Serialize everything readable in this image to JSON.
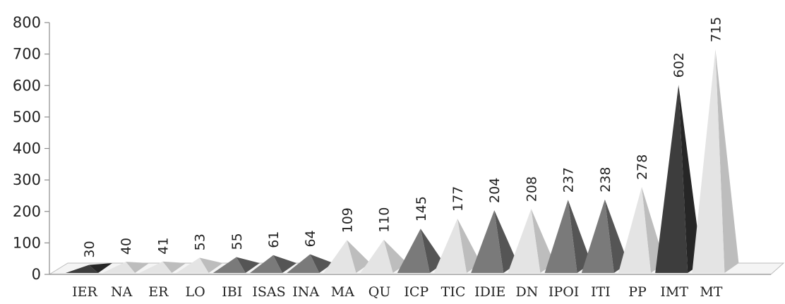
{
  "chart_data": {
    "type": "bar",
    "bar_shape": "pyramid-3d",
    "categories": [
      "IER",
      "NA",
      "ER",
      "LO",
      "IBI",
      "ISAS",
      "INA",
      "MA",
      "QU",
      "ICP",
      "TIC",
      "IDIE",
      "DN",
      "IPOI",
      "ITI",
      "PP",
      "IMT",
      "MT"
    ],
    "values": [
      30,
      40,
      41,
      53,
      55,
      61,
      64,
      109,
      110,
      145,
      177,
      204,
      208,
      237,
      238,
      278,
      602,
      715
    ],
    "value_labels": [
      "30",
      "40",
      "41",
      "53",
      "55",
      "61",
      "64",
      "109",
      "110",
      "145",
      "177",
      "204",
      "208",
      "237",
      "238",
      "278",
      "602",
      "715"
    ],
    "shades": [
      "dark",
      "light",
      "light",
      "light",
      "mid",
      "mid",
      "mid",
      "light",
      "light",
      "mid",
      "light",
      "mid",
      "light",
      "mid",
      "mid",
      "light",
      "dark",
      "light"
    ],
    "shade_colors": {
      "dark": {
        "front": "#3d3d3d",
        "side": "#262626"
      },
      "mid": {
        "front": "#7a7a7a",
        "side": "#555555"
      },
      "light": {
        "front": "#e4e4e4",
        "side": "#bdbdbd"
      }
    },
    "ylim": [
      0,
      800
    ],
    "yticks": [
      "0",
      "100",
      "200",
      "300",
      "400",
      "500",
      "600",
      "700",
      "800"
    ],
    "title": "",
    "xlabel": "",
    "ylabel": "",
    "grid": false,
    "legend": "none"
  }
}
